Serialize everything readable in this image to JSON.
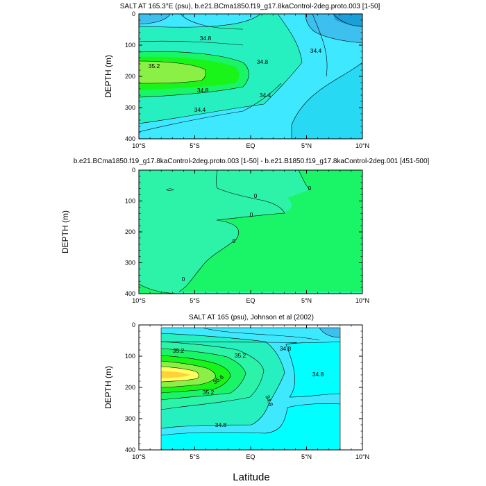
{
  "figure": {
    "xlabel": "Latitude",
    "colors": {
      "deep_blue": "#1a9fd8",
      "blue": "#3dc0ee",
      "light_blue": "#27d9f2",
      "cyan": "#00ffff",
      "aqua": "#3ee8ff",
      "seafoam": "#27f0c0",
      "mint": "#2cf3a8",
      "green": "#19f566",
      "bright_green": "#19f519",
      "lime": "#8af045",
      "yellow": "#ffff60",
      "gold": "#ffd23c"
    }
  },
  "chart_data": [
    {
      "type": "contour",
      "title": "SALT AT 165.3°E (psu), b.e21.BCma1850.f19_g17.8kaControl-2deg.proto.003 [1-50]",
      "xlabel": "",
      "ylabel": "DEPTH (m)",
      "x_ticks": [
        "10°S",
        "5°S",
        "EQ",
        "5°N",
        "10°N"
      ],
      "x_values": [
        -10,
        -5,
        0,
        5,
        10
      ],
      "xlim": [
        -10,
        10
      ],
      "y_ticks": [
        "0",
        "100",
        "200",
        "300",
        "400"
      ],
      "y_values": [
        0,
        100,
        200,
        300,
        400
      ],
      "ylim": [
        0,
        400
      ],
      "contour_labels": [
        "34.8",
        "35.2",
        "34.8",
        "34.8",
        "34.4",
        "34.4",
        "34.4"
      ]
    },
    {
      "type": "contour",
      "title": "b.e21.BCma1850.f19_g17.8kaControl-2deg.proto.003 [1-50] - b.e21.B1850.f19_g17.8kaControl-2deg.001 [451-500]",
      "xlabel": "",
      "ylabel": "DEPTH (m)",
      "x_ticks": [
        "10°S",
        "5°S",
        "EQ",
        "5°N",
        "10°N"
      ],
      "x_values": [
        -10,
        -5,
        0,
        5,
        10
      ],
      "xlim": [
        -10,
        10
      ],
      "y_ticks": [
        "0",
        "100",
        "200",
        "300",
        "400"
      ],
      "y_values": [
        0,
        100,
        200,
        300,
        400
      ],
      "ylim": [
        0,
        400
      ],
      "contour_labels": [
        "0",
        "0",
        "0",
        "0",
        "0"
      ]
    },
    {
      "type": "contour",
      "title": "SALT AT 165 (psu), Johnson et al (2002)",
      "xlabel": "",
      "ylabel": "DEPTH (m)",
      "x_ticks": [
        "10°S",
        "5°S",
        "EQ",
        "5°N",
        "10°N"
      ],
      "x_values": [
        -10,
        -5,
        0,
        5,
        10
      ],
      "xlim": [
        -10,
        10
      ],
      "y_ticks": [
        "0",
        "100",
        "200",
        "300",
        "400"
      ],
      "y_values": [
        0,
        100,
        200,
        300,
        400
      ],
      "ylim": [
        0,
        400
      ],
      "data_extent_lat": [
        -8,
        8
      ],
      "data_extent_depth": [
        10,
        400
      ],
      "contour_labels": [
        "35.2",
        "35.2",
        "35.6",
        "35.2",
        "34.8",
        "34.8",
        "34.8",
        "34.8"
      ]
    }
  ]
}
